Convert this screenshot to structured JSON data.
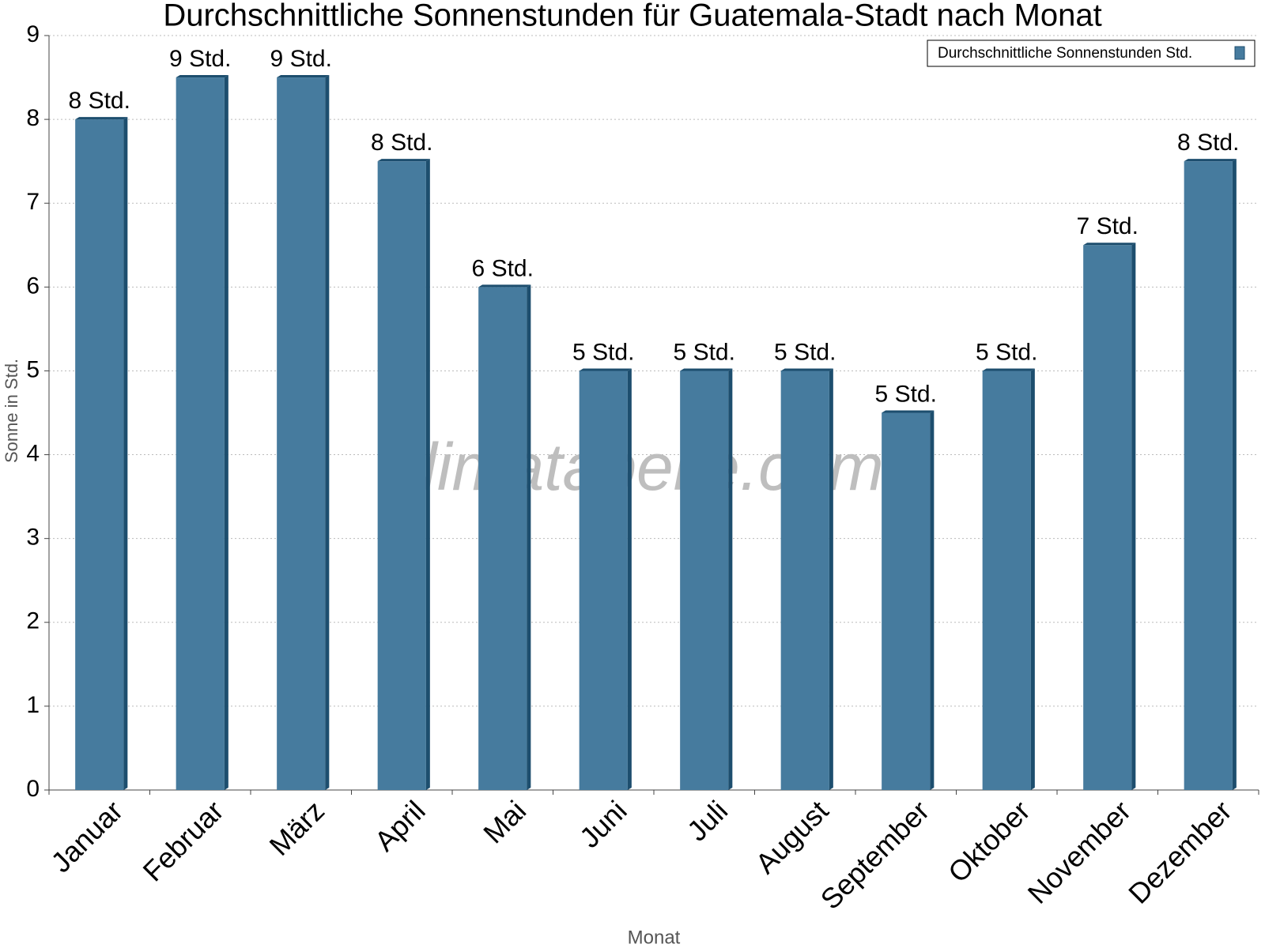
{
  "chart_data": {
    "type": "bar",
    "title": "Durchschnittliche Sonnenstunden für Guatemala-Stadt nach Monat",
    "x_label": "Monat",
    "y_label": "Sonne in Std.",
    "watermark": "klimatabelle.com",
    "categories": [
      "Januar",
      "Februar",
      "März",
      "April",
      "Mai",
      "Juni",
      "Juli",
      "August",
      "September",
      "Oktober",
      "November",
      "Dezember"
    ],
    "series": [
      {
        "name": "Durchschnittliche Sonnenstunden Std.",
        "color": "#467b9e",
        "values": [
          8,
          8.5,
          8.5,
          7.5,
          6,
          5,
          5,
          5,
          4.5,
          5,
          6.5,
          7.5
        ],
        "value_labels": [
          "8 Std.",
          "9 Std.",
          "9 Std.",
          "8 Std.",
          "6 Std.",
          "5 Std.",
          "5 Std.",
          "5 Std.",
          "5 Std.",
          "5 Std.",
          "7 Std.",
          "8 Std."
        ]
      }
    ],
    "ylim": [
      0,
      9
    ],
    "yticks": [
      0,
      1,
      2,
      3,
      4,
      5,
      6,
      7,
      8,
      9
    ],
    "grid": true,
    "legend": "top-right"
  }
}
